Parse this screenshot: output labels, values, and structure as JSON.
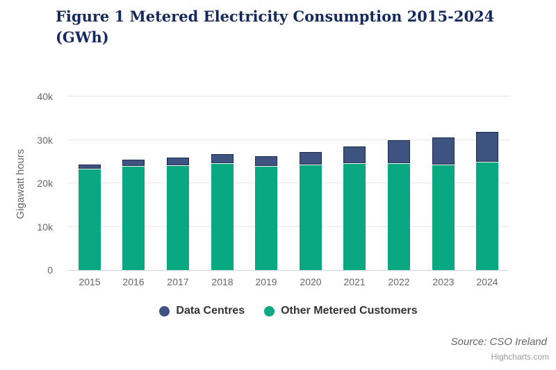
{
  "header": {
    "line1": "Figure 1 Metered Electricity Consumption 2015-2024",
    "line2": "(GWh)"
  },
  "chart_data": {
    "type": "bar",
    "stacked": true,
    "title": "Figure 1 Metered Electricity Consumption 2015-2024 (GWh)",
    "categories": [
      "2015",
      "2016",
      "2017",
      "2018",
      "2019",
      "2020",
      "2021",
      "2022",
      "2023",
      "2024"
    ],
    "series": [
      {
        "name": "Data Centres",
        "color": "#3e5380",
        "border_color": "#1c2a56",
        "values": [
          1000,
          1400,
          1800,
          2100,
          2250,
          2900,
          3900,
          5200,
          6300,
          6900
        ]
      },
      {
        "name": "Other Metered Customers",
        "color": "#0aa882",
        "border_color": "#ffffff",
        "values": [
          23200,
          23800,
          24000,
          24400,
          23900,
          24100,
          24500,
          24500,
          24200,
          24800
        ]
      }
    ],
    "stack_totals": [
      24200,
      25200,
      25800,
      26500,
      26150,
      27000,
      28400,
      29700,
      30500,
      31700
    ],
    "xlabel": "",
    "ylabel": "Gigawatt hours",
    "ylim": [
      0,
      40000
    ],
    "yticks": [
      0,
      10000,
      20000,
      30000,
      40000
    ],
    "ytick_labels": [
      "0",
      "10k",
      "20k",
      "30k",
      "40k"
    ],
    "units": "GWh",
    "grid": true,
    "legend_position": "bottom"
  },
  "footer": {
    "source": "Source: CSO Ireland",
    "credits": "Highcharts.com"
  },
  "colors": {
    "title": "#16295c",
    "axis_label": "#666666",
    "gridline": "#e6e6e6",
    "axis_line": "#ccd6eb",
    "legend_text": "#333333",
    "data_centres": "#3e5380",
    "other_metered_customers": "#0aa882"
  }
}
